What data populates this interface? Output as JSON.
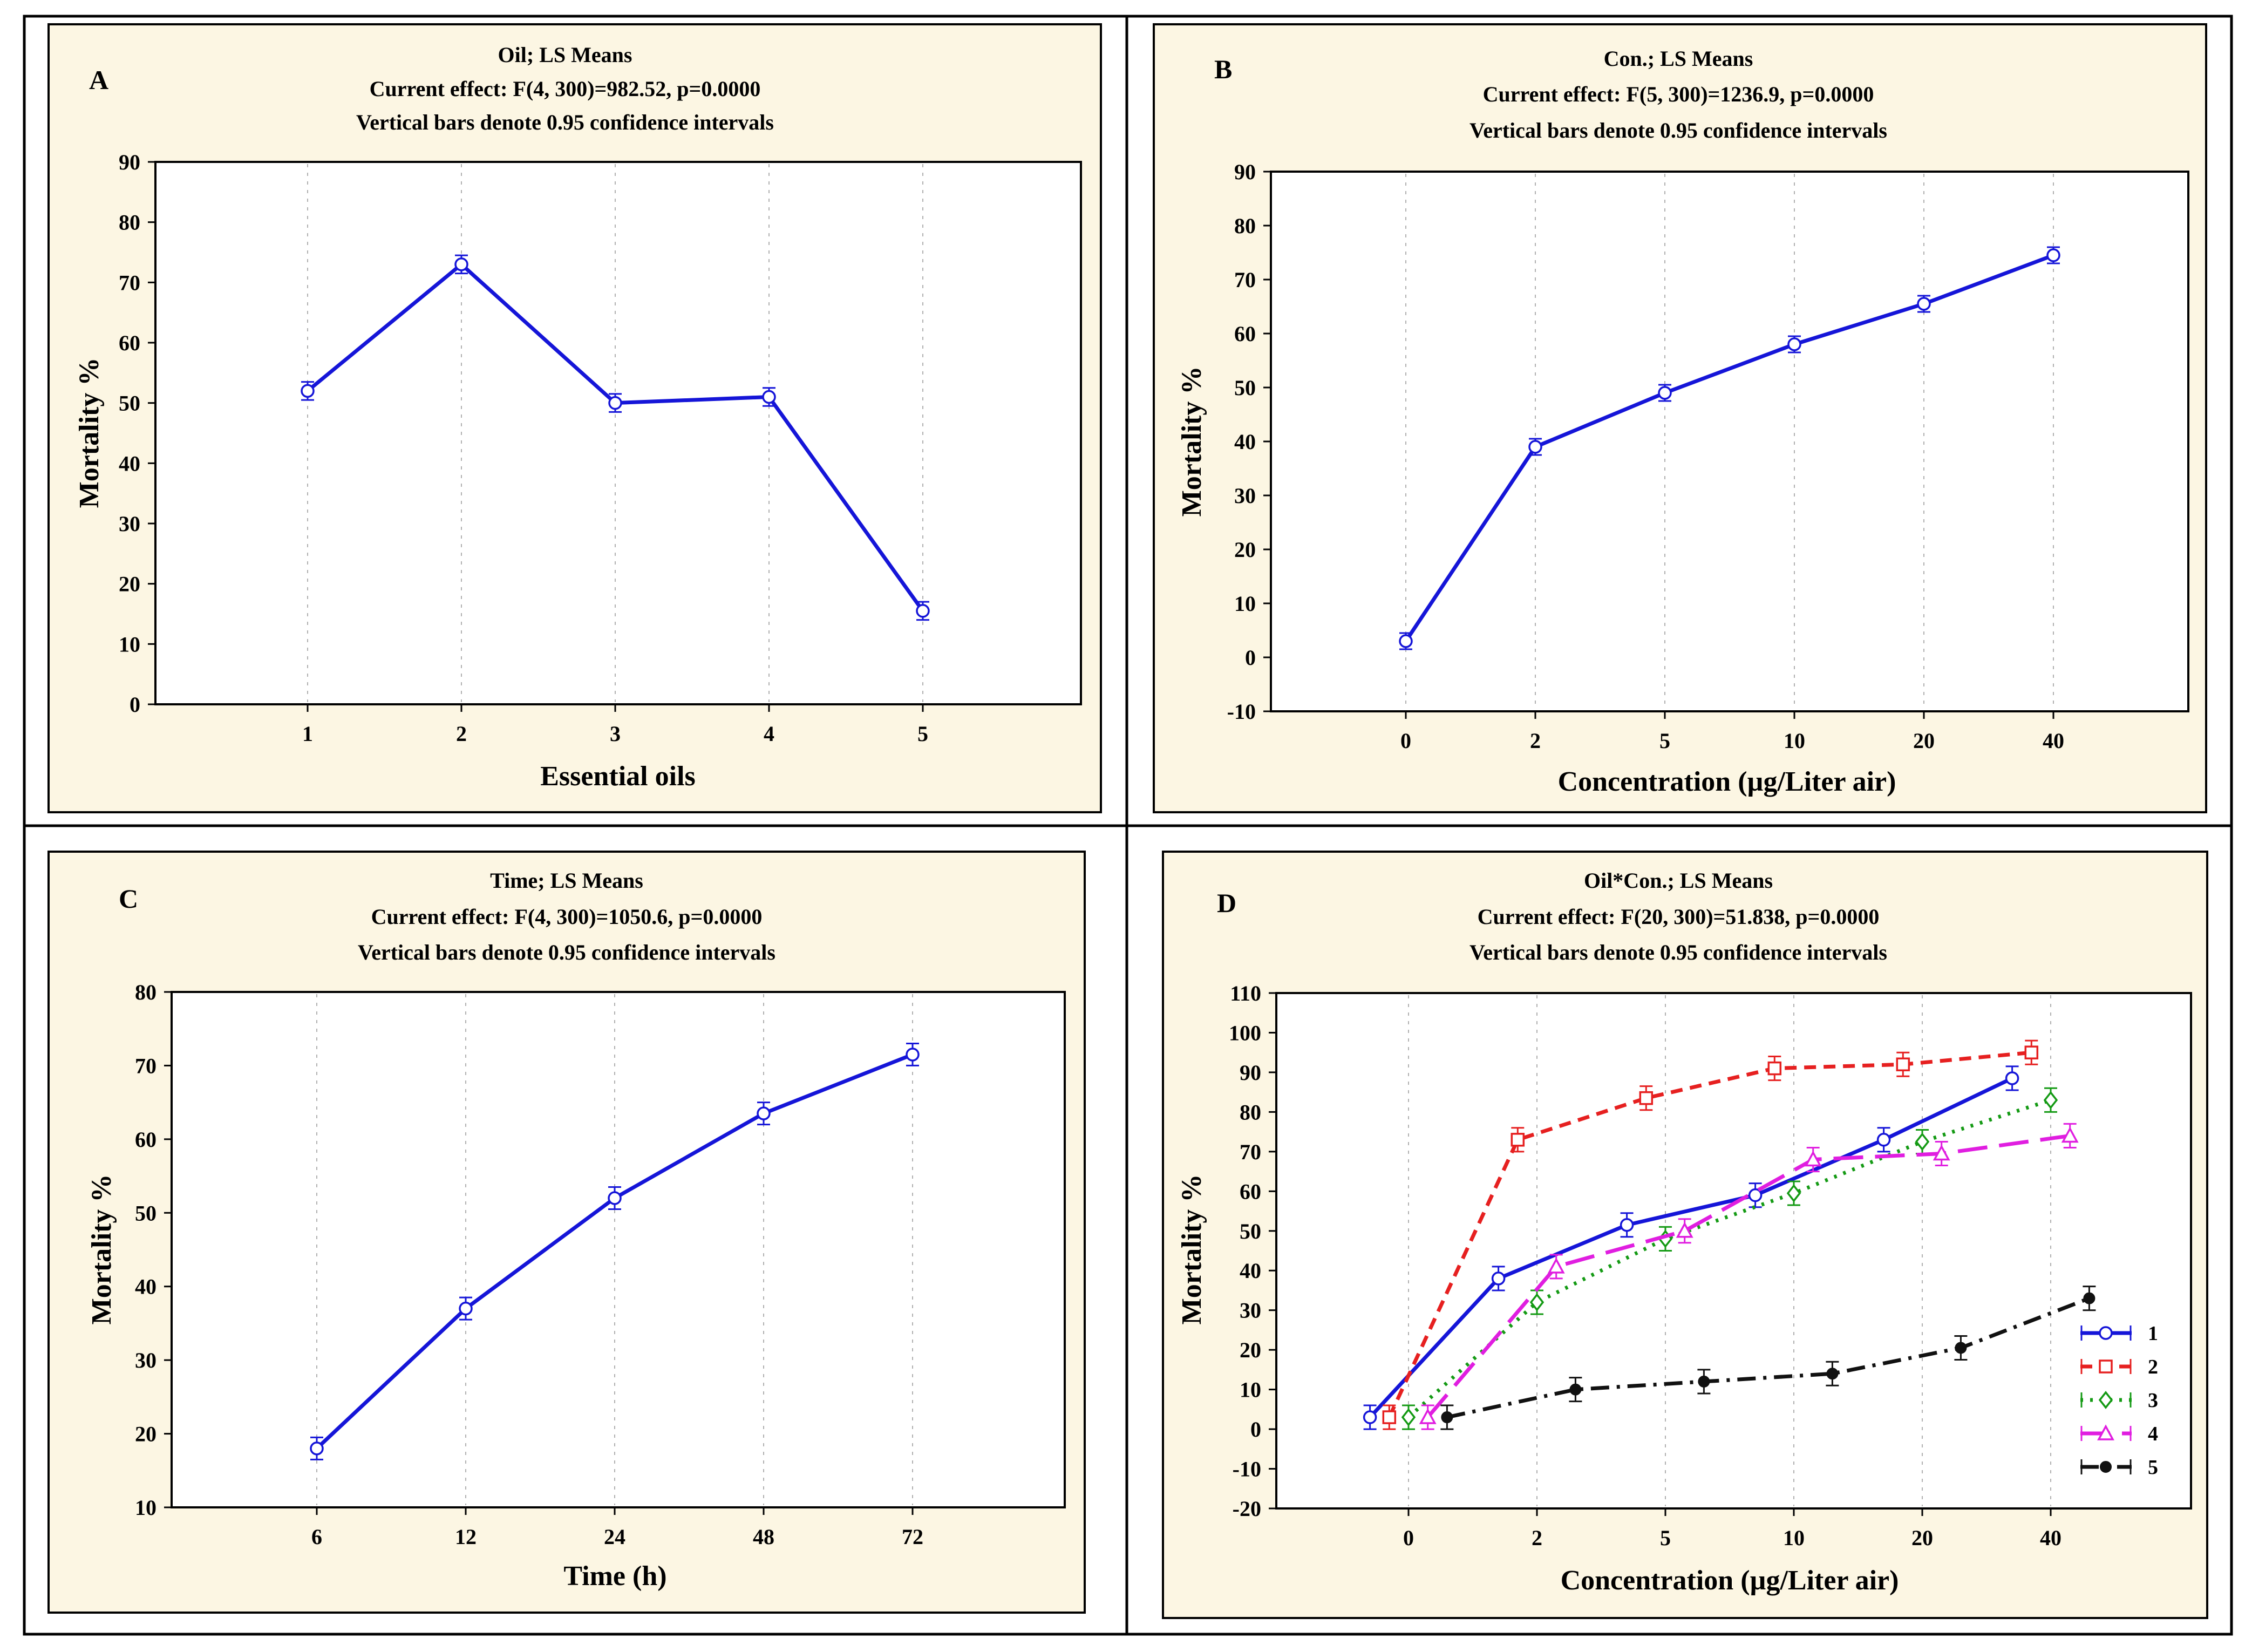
{
  "colors": {
    "background": "#fcf6e3",
    "s1": "#1515d8",
    "s2": "#e62020",
    "s3": "#149a14",
    "s4": "#e01ee0",
    "s5": "#111111"
  },
  "chart_data": [
    {
      "type": "line",
      "panel_label": "A",
      "title": "Oil; LS Means",
      "subtitle": "Current effect: F(4, 300)=982.52, p=0.0000",
      "note": "Vertical bars denote 0.95 confidence intervals",
      "xlabel": "Essential oils",
      "ylabel": "Mortality %",
      "categories": [
        "1",
        "2",
        "3",
        "4",
        "5"
      ],
      "ylim": [
        0,
        90
      ],
      "yticks": [
        0,
        10,
        20,
        30,
        40,
        50,
        60,
        70,
        80,
        90
      ],
      "series": [
        {
          "name": "Oil",
          "color": "#1515d8",
          "marker": "circle",
          "dash": "solid",
          "values": [
            52,
            73,
            50,
            51,
            15.5
          ],
          "ci": [
            1.5,
            1.5,
            1.5,
            1.5,
            1.5
          ]
        }
      ]
    },
    {
      "type": "line",
      "panel_label": "B",
      "title": "Con.; LS Means",
      "subtitle": "Current effect: F(5, 300)=1236.9, p=0.0000",
      "note": "Vertical bars denote 0.95 confidence intervals",
      "xlabel": "Concentration (µg/Liter air)",
      "ylabel": "Mortality %",
      "categories": [
        "0",
        "2",
        "5",
        "10",
        "20",
        "40"
      ],
      "ylim": [
        -10,
        90
      ],
      "yticks": [
        -10,
        0,
        10,
        20,
        30,
        40,
        50,
        60,
        70,
        80,
        90
      ],
      "series": [
        {
          "name": "Con.",
          "color": "#1515d8",
          "marker": "circle",
          "dash": "solid",
          "values": [
            3,
            39,
            49,
            58,
            65.5,
            74.5
          ],
          "ci": [
            1.5,
            1.5,
            1.5,
            1.5,
            1.5,
            1.5
          ]
        }
      ]
    },
    {
      "type": "line",
      "panel_label": "C",
      "title": "Time; LS Means",
      "subtitle": "Current effect: F(4, 300)=1050.6, p=0.0000",
      "note": "Vertical bars denote 0.95 confidence intervals",
      "xlabel": "Time (h)",
      "ylabel": "Mortality %",
      "categories": [
        "6",
        "12",
        "24",
        "48",
        "72"
      ],
      "ylim": [
        10,
        80
      ],
      "yticks": [
        10,
        20,
        30,
        40,
        50,
        60,
        70,
        80
      ],
      "series": [
        {
          "name": "Time",
          "color": "#1515d8",
          "marker": "circle",
          "dash": "solid",
          "values": [
            18,
            37,
            52,
            63.5,
            71.5
          ],
          "ci": [
            1.5,
            1.5,
            1.5,
            1.5,
            1.5
          ]
        }
      ]
    },
    {
      "type": "line",
      "panel_label": "D",
      "title": "Oil*Con.; LS Means",
      "subtitle": "Current effect: F(20, 300)=51.838, p=0.0000",
      "note": "Vertical bars denote 0.95 confidence intervals",
      "xlabel": "Concentration (µg/Liter air)",
      "ylabel": "Mortality %",
      "categories": [
        "0",
        "2",
        "5",
        "10",
        "20",
        "40"
      ],
      "ylim": [
        -20,
        110
      ],
      "yticks": [
        -20,
        -10,
        0,
        10,
        20,
        30,
        40,
        50,
        60,
        70,
        80,
        90,
        100,
        110
      ],
      "legend_position": "bottom-right",
      "series": [
        {
          "name": "1",
          "color": "#1515d8",
          "marker": "circle",
          "dash": "solid",
          "offset": -0.3,
          "values": [
            3,
            38,
            51.5,
            59,
            73,
            88.5
          ],
          "ci": [
            3,
            3,
            3,
            3,
            3,
            3
          ]
        },
        {
          "name": "2",
          "color": "#e62020",
          "marker": "square",
          "dash": "short",
          "offset": -0.15,
          "values": [
            3,
            73,
            83.5,
            91,
            92,
            95
          ],
          "ci": [
            3,
            3,
            3,
            3,
            3,
            3
          ]
        },
        {
          "name": "3",
          "color": "#149a14",
          "marker": "diamond",
          "dash": "dot",
          "offset": 0,
          "values": [
            3,
            32,
            48,
            59.5,
            72.5,
            83
          ],
          "ci": [
            3,
            3,
            3,
            3,
            3,
            3
          ]
        },
        {
          "name": "4",
          "color": "#e01ee0",
          "marker": "triangle",
          "dash": "long",
          "offset": 0.15,
          "values": [
            3,
            41,
            50,
            68,
            69.5,
            74
          ],
          "ci": [
            3,
            3,
            3,
            3,
            3,
            3
          ]
        },
        {
          "name": "5",
          "color": "#111111",
          "marker": "dot",
          "dash": "dashdot",
          "offset": 0.3,
          "values": [
            3,
            10,
            12,
            14,
            20.5,
            33
          ],
          "ci": [
            3,
            3,
            3,
            3,
            3,
            3
          ]
        }
      ]
    }
  ]
}
